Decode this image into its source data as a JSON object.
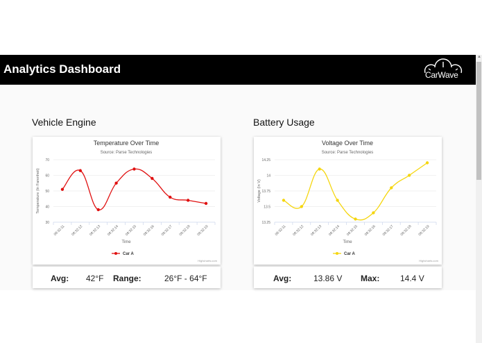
{
  "header": {
    "title": "Analytics Dashboard",
    "logo_text": "CarWave",
    "logo_icon": "speedometer-gauges-icon"
  },
  "sections": [
    {
      "title": "Vehicle Engine",
      "stats": [
        {
          "label": "Avg:",
          "value": "42°F"
        },
        {
          "label": "Range:",
          "value": "26°F - 64°F"
        }
      ]
    },
    {
      "title": "Battery Usage",
      "stats": [
        {
          "label": "Avg:",
          "value": "13.86 V"
        },
        {
          "label": "Max:",
          "value": "14.4 V"
        }
      ]
    }
  ],
  "chart_data": [
    {
      "type": "line",
      "title": "Temperature Over Time",
      "subtitle": "Source: Parse Technologies",
      "xlabel": "Time",
      "ylabel": "Temperature (In Farenheit)",
      "categories": [
        "08:32:11",
        "08:32:12",
        "08:32:13",
        "08:32:14",
        "08:32:15",
        "08:32:16",
        "08:32:17",
        "08:32:18",
        "08:32:19"
      ],
      "series": [
        {
          "name": "Car A",
          "color": "#e01010",
          "values": [
            51,
            63,
            38,
            55,
            64,
            58,
            46,
            44,
            42
          ]
        }
      ],
      "yticks": [
        "70",
        "60",
        "50",
        "40",
        "30"
      ],
      "ylim": [
        30,
        70
      ],
      "grid": true,
      "legend_position": "bottom",
      "credits": "Highcharts.com"
    },
    {
      "type": "line",
      "title": "Voltage Over Time",
      "subtitle": "Source: Parse Technologies",
      "xlabel": "Time",
      "ylabel": "Voltage (In V)",
      "categories": [
        "08:32:11",
        "08:32:12",
        "08:32:13",
        "08:32:14",
        "08:32:15",
        "08:32:16",
        "08:32:17",
        "08:32:18",
        "08:32:19"
      ],
      "series": [
        {
          "name": "Car A",
          "color": "#f5d60f",
          "values": [
            13.6,
            13.5,
            14.1,
            13.6,
            13.3,
            13.4,
            13.8,
            14.0,
            14.2
          ]
        }
      ],
      "yticks": [
        "14.25",
        "14",
        "13.75",
        "13.5",
        "13.25"
      ],
      "ylim": [
        13.25,
        14.25
      ],
      "grid": true,
      "legend_position": "bottom",
      "credits": "Highcharts.com"
    }
  ]
}
